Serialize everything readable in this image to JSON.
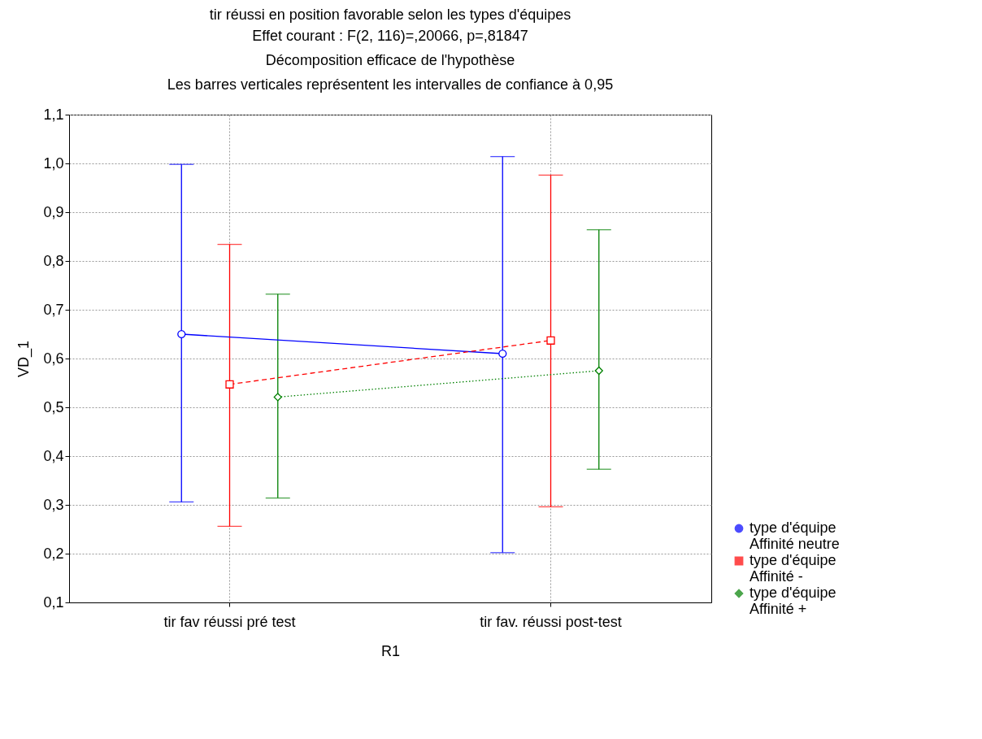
{
  "chart_data": {
    "type": "line",
    "title": "tir réussi en position favorable selon les types d'équipes",
    "subtitle": "Effet courant : F(2, 116)=,20066, p=,81847\nDécomposition efficace de l'hypothèse\nLes barres verticales représentent les intervalles de confiance à 0,95",
    "xlabel": "R1",
    "ylabel": "VD_1",
    "categories": [
      "tir fav réussi pré test",
      "tir fav. réussi post-test"
    ],
    "series": [
      {
        "name": "type d'équipe\nAffinité neutre",
        "color": "#0000ff",
        "values": [
          0.65,
          0.61
        ],
        "errors": [
          [
            0.306,
            0.998
          ],
          [
            0.202,
            1.014
          ]
        ],
        "marker": "circle",
        "line_style": "solid"
      },
      {
        "name": "type d'équipe\nAffinité -",
        "color": "#ff0000",
        "values": [
          0.547,
          0.637
        ],
        "errors": [
          [
            0.256,
            0.834
          ],
          [
            0.296,
            0.976
          ]
        ],
        "marker": "square",
        "line_style": "dashed"
      },
      {
        "name": "type d'équipe\nAffinité +",
        "color": "#008000",
        "values": [
          0.521,
          0.575
        ],
        "errors": [
          [
            0.314,
            0.732
          ],
          [
            0.373,
            0.864
          ]
        ],
        "marker": "diamond",
        "line_style": "dotted"
      }
    ],
    "ylim": [
      0.1,
      1.1
    ],
    "yticks": [
      {
        "value": 0.1,
        "label": "0,1"
      },
      {
        "value": 0.2,
        "label": "0,2"
      },
      {
        "value": 0.3,
        "label": "0,3"
      },
      {
        "value": 0.4,
        "label": "0,4"
      },
      {
        "value": 0.5,
        "label": "0,5"
      },
      {
        "value": 0.6,
        "label": "0,6"
      },
      {
        "value": 0.7,
        "label": "0,7"
      },
      {
        "value": 0.8,
        "label": "0,8"
      },
      {
        "value": 0.9,
        "label": "0,9"
      },
      {
        "value": 1.0,
        "label": "1,0"
      },
      {
        "value": 1.1,
        "label": "1,1"
      }
    ],
    "grid": true,
    "legend": "bottom right"
  }
}
